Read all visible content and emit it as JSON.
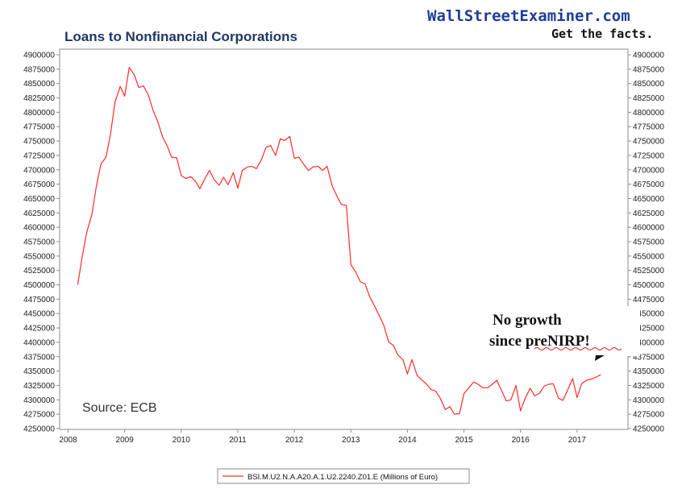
{
  "branding": {
    "site": "WallStreetExaminer.com",
    "tagline": "Get the facts.",
    "site_color": "#1f3d99"
  },
  "annotations": {
    "source": "Source: ECB",
    "callout_line1": "No growth",
    "callout_line2": "since preNIRP!"
  },
  "chart_data": {
    "type": "line",
    "title": "Loans to Nonfinancial Corporations",
    "xlabel": "",
    "ylabel": "",
    "xlim": [
      2007.85,
      2017.9
    ],
    "ylim": [
      4250000,
      4900000
    ],
    "x_ticks": [
      "2008",
      "2009",
      "2010",
      "2011",
      "2012",
      "2013",
      "2014",
      "2015",
      "2016",
      "2017"
    ],
    "y_ticks": [
      4250000,
      4275000,
      4300000,
      4325000,
      4350000,
      4375000,
      4400000,
      4425000,
      4450000,
      4475000,
      4500000,
      4525000,
      4550000,
      4575000,
      4600000,
      4625000,
      4650000,
      4675000,
      4700000,
      4725000,
      4750000,
      4775000,
      4800000,
      4825000,
      4850000,
      4875000,
      4900000
    ],
    "grid": false,
    "legend_position": "bottom",
    "series": [
      {
        "name": "BSI.M.U2.N.A.A20.A.1.U2.2240.Z01.E (Millions of Euro)",
        "color": "#ff2a2a",
        "points": [
          [
            2008.17,
            4500000
          ],
          [
            2008.25,
            4550000
          ],
          [
            2008.33,
            4592000
          ],
          [
            2008.42,
            4622000
          ],
          [
            2008.5,
            4672000
          ],
          [
            2008.58,
            4710000
          ],
          [
            2008.67,
            4722000
          ],
          [
            2008.75,
            4762000
          ],
          [
            2008.83,
            4818000
          ],
          [
            2008.92,
            4845000
          ],
          [
            2009.0,
            4828000
          ],
          [
            2009.08,
            4878000
          ],
          [
            2009.17,
            4865000
          ],
          [
            2009.25,
            4843000
          ],
          [
            2009.33,
            4846000
          ],
          [
            2009.42,
            4830000
          ],
          [
            2009.5,
            4804000
          ],
          [
            2009.58,
            4785000
          ],
          [
            2009.67,
            4757000
          ],
          [
            2009.75,
            4742000
          ],
          [
            2009.83,
            4722000
          ],
          [
            2009.92,
            4721000
          ],
          [
            2010.0,
            4690000
          ],
          [
            2010.08,
            4685000
          ],
          [
            2010.17,
            4688000
          ],
          [
            2010.25,
            4680000
          ],
          [
            2010.33,
            4667000
          ],
          [
            2010.42,
            4685000
          ],
          [
            2010.5,
            4699000
          ],
          [
            2010.58,
            4683000
          ],
          [
            2010.67,
            4673000
          ],
          [
            2010.75,
            4687000
          ],
          [
            2010.83,
            4674000
          ],
          [
            2010.92,
            4695000
          ],
          [
            2011.0,
            4668000
          ],
          [
            2011.08,
            4699000
          ],
          [
            2011.17,
            4705000
          ],
          [
            2011.25,
            4706000
          ],
          [
            2011.33,
            4702000
          ],
          [
            2011.42,
            4718000
          ],
          [
            2011.5,
            4739000
          ],
          [
            2011.58,
            4742000
          ],
          [
            2011.67,
            4725000
          ],
          [
            2011.75,
            4754000
          ],
          [
            2011.83,
            4751000
          ],
          [
            2011.92,
            4758000
          ],
          [
            2012.0,
            4720000
          ],
          [
            2012.08,
            4722000
          ],
          [
            2012.17,
            4709000
          ],
          [
            2012.25,
            4699000
          ],
          [
            2012.33,
            4705000
          ],
          [
            2012.42,
            4706000
          ],
          [
            2012.5,
            4699000
          ],
          [
            2012.58,
            4706000
          ],
          [
            2012.67,
            4672000
          ],
          [
            2012.75,
            4655000
          ],
          [
            2012.83,
            4640000
          ],
          [
            2012.92,
            4638000
          ],
          [
            2013.0,
            4535000
          ],
          [
            2013.08,
            4523000
          ],
          [
            2013.17,
            4505000
          ],
          [
            2013.25,
            4502000
          ],
          [
            2013.33,
            4480000
          ],
          [
            2013.42,
            4463000
          ],
          [
            2013.5,
            4447000
          ],
          [
            2013.58,
            4430000
          ],
          [
            2013.67,
            4400000
          ],
          [
            2013.75,
            4395000
          ],
          [
            2013.83,
            4378000
          ],
          [
            2013.92,
            4370000
          ],
          [
            2014.0,
            4345000
          ],
          [
            2014.08,
            4370000
          ],
          [
            2014.17,
            4343000
          ],
          [
            2014.25,
            4335000
          ],
          [
            2014.33,
            4328000
          ],
          [
            2014.42,
            4318000
          ],
          [
            2014.5,
            4315000
          ],
          [
            2014.58,
            4303000
          ],
          [
            2014.67,
            4283000
          ],
          [
            2014.75,
            4288000
          ],
          [
            2014.83,
            4275000
          ],
          [
            2014.92,
            4276000
          ],
          [
            2015.0,
            4311000
          ],
          [
            2015.08,
            4320000
          ],
          [
            2015.17,
            4331000
          ],
          [
            2015.25,
            4327000
          ],
          [
            2015.33,
            4321000
          ],
          [
            2015.42,
            4321000
          ],
          [
            2015.5,
            4327000
          ],
          [
            2015.58,
            4334000
          ],
          [
            2015.67,
            4315000
          ],
          [
            2015.75,
            4298000
          ],
          [
            2015.83,
            4300000
          ],
          [
            2015.92,
            4325000
          ],
          [
            2016.0,
            4281000
          ],
          [
            2016.08,
            4302000
          ],
          [
            2016.17,
            4320000
          ],
          [
            2016.25,
            4307000
          ],
          [
            2016.33,
            4311000
          ],
          [
            2016.42,
            4324000
          ],
          [
            2016.5,
            4327000
          ],
          [
            2016.58,
            4328000
          ],
          [
            2016.67,
            4303000
          ],
          [
            2016.75,
            4299000
          ],
          [
            2016.83,
            4316000
          ],
          [
            2016.92,
            4337000
          ],
          [
            2017.0,
            4304000
          ],
          [
            2017.08,
            4328000
          ],
          [
            2017.17,
            4334000
          ],
          [
            2017.25,
            4336000
          ],
          [
            2017.33,
            4339000
          ],
          [
            2017.42,
            4344000
          ]
        ]
      }
    ]
  }
}
